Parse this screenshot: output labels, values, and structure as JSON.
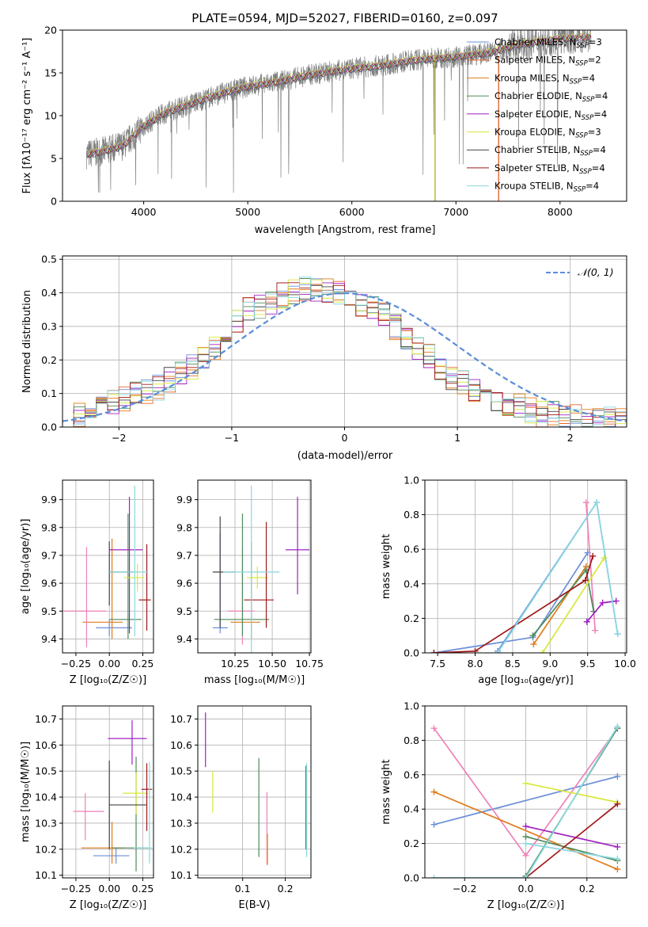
{
  "chart_data": [
    {
      "type": "line",
      "title": "PLATE=0594, MJD=52027, FIBERID=0160, z=0.097",
      "xlabel": "wavelength [Angstrom, rest frame]",
      "ylabel": "Flux [f$_\\lambda$10$^{-17}$ erg cm$^{-2}$ s$^{-1}$ A$^{-1}$]",
      "ylabel_display": "Flux [fλ10⁻¹⁷ erg cm⁻² s⁻¹ A⁻¹]",
      "xlim": [
        3220,
        8640
      ],
      "ylim": [
        0,
        20
      ],
      "xticks": [
        4000,
        5000,
        6000,
        7000,
        8000
      ],
      "yticks": [
        0,
        5,
        10,
        15,
        20
      ],
      "grid": false,
      "legend_position": "top-right",
      "spectrum_color": "#808080",
      "model_curve": {
        "x": [
          3450,
          3600,
          3800,
          4000,
          4200,
          4500,
          4800,
          5000,
          5300,
          5600,
          6000,
          6300,
          6600,
          7000,
          7300,
          7600,
          8000,
          8300
        ],
        "y": [
          5.5,
          5.8,
          6.5,
          8.8,
          10.3,
          11.6,
          12.8,
          13.4,
          14.0,
          14.8,
          15.5,
          15.9,
          16.5,
          16.9,
          17.3,
          18.3,
          19.0,
          19.2
        ]
      },
      "series": [
        {
          "name": "Chabrier MILES, N$_{SSP}$=3",
          "label": "Chabrier MILES, N",
          "sub": "SSP",
          "suffix": "=3",
          "color": "#6a8fd8"
        },
        {
          "name": "Salpeter MILES, N$_{SSP}$=2",
          "label": "Salpeter MILES, N",
          "sub": "SSP",
          "suffix": "=2",
          "color": "#e8652b"
        },
        {
          "name": "Kroupa MILES, N$_{SSP}$=4",
          "label": "Kroupa MILES, N",
          "sub": "SSP",
          "suffix": "=4",
          "color": "#e07b1a"
        },
        {
          "name": "Chabrier ELODIE, N$_{SSP}$=4",
          "label": "Chabrier ELODIE, N",
          "sub": "SSP",
          "suffix": "=4",
          "color": "#4e8a5a"
        },
        {
          "name": "Salpeter ELODIE, N$_{SSP}$=4",
          "label": "Salpeter ELODIE, N",
          "sub": "SSP",
          "suffix": "=4",
          "color": "#a020c0"
        },
        {
          "name": "Kroupa ELODIE, N$_{SSP}$=3",
          "label": "Kroupa ELODIE, N",
          "sub": "SSP",
          "suffix": "=3",
          "color": "#d8e838"
        },
        {
          "name": "Chabrier STELIB, N$_{SSP}$=4",
          "label": "Chabrier STELIB, N",
          "sub": "SSP",
          "suffix": "=4",
          "color": "#444444"
        },
        {
          "name": "Salpeter STELIB, N$_{SSP}$=4",
          "label": "Salpeter STELIB, N",
          "sub": "SSP",
          "suffix": "=4",
          "color": "#a01818"
        },
        {
          "name": "Kroupa STELIB, N$_{SSP}$=4",
          "label": "Kroupa STELIB, N",
          "sub": "SSP",
          "suffix": "=4",
          "color": "#8ad8e0"
        }
      ],
      "vertical_lines": [
        {
          "x": 6800,
          "color": "#b0a000"
        },
        {
          "x": 7410,
          "color": "#e05010"
        }
      ]
    },
    {
      "type": "line",
      "xlabel": "(data-model)/error",
      "ylabel": "Normed distribution",
      "xlim": [
        -2.5,
        2.5
      ],
      "ylim": [
        0,
        0.51
      ],
      "xticks": [
        -2,
        -1,
        0,
        1,
        2
      ],
      "yticks": [
        0.0,
        0.1,
        0.2,
        0.3,
        0.4,
        0.5
      ],
      "grid": true,
      "legend_position": "top-right",
      "legend": "$\\mathcal{N}(0,1)$",
      "legend_display": "𝒩(0, 1)",
      "gaussian_color": "#5b8dd8",
      "histogram_bin_width": 0.1,
      "histogram_values": [
        0.03,
        0.04,
        0.05,
        0.06,
        0.07,
        0.08,
        0.1,
        0.11,
        0.12,
        0.14,
        0.16,
        0.18,
        0.21,
        0.24,
        0.28,
        0.31,
        0.35,
        0.36,
        0.37,
        0.39,
        0.4,
        0.41,
        0.41,
        0.41,
        0.4,
        0.39,
        0.37,
        0.35,
        0.33,
        0.3,
        0.27,
        0.24,
        0.21,
        0.18,
        0.15,
        0.13,
        0.11,
        0.1,
        0.08,
        0.07,
        0.06,
        0.05,
        0.04,
        0.04,
        0.03,
        0.03,
        0.02,
        0.02,
        0.02,
        0.02
      ]
    },
    {
      "type": "scatter",
      "xlabel": "Z [log$_{10}$(Z/Z$_\\odot$)]",
      "xlabel_display": "Z [log₁₀(Z/Z☉)]",
      "ylabel": "age  [log$_{10}$(age/yr)]",
      "ylabel_display": "age  [log₁₀(age/yr)]",
      "xlim": [
        -0.35,
        0.33
      ],
      "ylim": [
        9.35,
        9.97
      ],
      "xticks": [
        -0.25,
        0.0,
        0.25
      ],
      "xtick_labels": [
        "−0.25",
        "0.00",
        "0.25"
      ],
      "yticks": [
        9.4,
        9.5,
        9.6,
        9.7,
        9.8,
        9.9
      ],
      "grid": true,
      "error_bars": [
        {
          "x": 0.0,
          "y": 9.44,
          "xerr": [
            0.1,
            0.17
          ],
          "yerr": [
            0.03,
            0.03
          ],
          "color": "#6a8fd8"
        },
        {
          "x": 0.02,
          "y": 9.46,
          "xerr": [
            0.22,
            0.08
          ],
          "yerr": [
            0.06,
            0.3
          ],
          "color": "#e07b1a"
        },
        {
          "x": -0.17,
          "y": 9.5,
          "xerr": [
            0.17,
            0.15
          ],
          "yerr": [
            0.13,
            0.23
          ],
          "color": "#ef82b8"
        },
        {
          "x": 0.14,
          "y": 9.47,
          "xerr": [
            0.14,
            0.1
          ],
          "yerr": [
            0.07,
            0.38
          ],
          "color": "#4e8a5a"
        },
        {
          "x": 0.15,
          "y": 9.72,
          "xerr": [
            0.15,
            0.1
          ],
          "yerr": [
            0.3,
            0.19
          ],
          "color": "#a020c0"
        },
        {
          "x": 0.21,
          "y": 9.62,
          "xerr": [
            0.1,
            0.05
          ],
          "yerr": [
            0.05,
            0.05
          ],
          "color": "#d8e838"
        },
        {
          "x": 0.0,
          "y": 9.64,
          "xerr": [
            0.0,
            0.18
          ],
          "yerr": [
            0.12,
            0.11
          ],
          "color": "#444444"
        },
        {
          "x": 0.28,
          "y": 9.54,
          "xerr": [
            0.06,
            0.03
          ],
          "yerr": [
            0.11,
            0.2
          ],
          "color": "#a01818"
        },
        {
          "x": 0.19,
          "y": 9.64,
          "xerr": [
            0.19,
            0.1
          ],
          "yerr": [
            0.23,
            0.31
          ],
          "color": "#8ad8e0"
        }
      ]
    },
    {
      "type": "scatter",
      "xlabel": "mass [log$_{10}$(M/M$_\\odot$)]",
      "xlabel_display": "mass [log₁₀(M/M☉)]",
      "xlim": [
        10.0,
        10.76
      ],
      "ylim": [
        9.35,
        9.97
      ],
      "xticks": [
        10.25,
        10.5,
        10.75
      ],
      "yticks": [
        9.4,
        9.5,
        9.6,
        9.7,
        9.8,
        9.9
      ],
      "grid": true,
      "error_bars": [
        {
          "x": 10.15,
          "y": 9.44,
          "xerr": [
            0.05,
            0.05
          ],
          "yerr": [
            0.02,
            0.34
          ],
          "color": "#6a8fd8"
        },
        {
          "x": 10.36,
          "y": 9.46,
          "xerr": [
            0.14,
            0.06
          ],
          "yerr": [
            0.06,
            0.29
          ],
          "color": "#e07b1a"
        },
        {
          "x": 10.3,
          "y": 9.5,
          "xerr": [
            0.1,
            0.08
          ],
          "yerr": [
            0.12,
            0.22
          ],
          "color": "#ef82b8"
        },
        {
          "x": 10.3,
          "y": 9.47,
          "xerr": [
            0.19,
            0.18
          ],
          "yerr": [
            0.06,
            0.38
          ],
          "color": "#4e8a5a"
        },
        {
          "x": 10.67,
          "y": 9.72,
          "xerr": [
            0.08,
            0.08
          ],
          "yerr": [
            0.16,
            0.19
          ],
          "color": "#a020c0"
        },
        {
          "x": 10.4,
          "y": 9.62,
          "xerr": [
            0.07,
            0.07
          ],
          "yerr": [
            0.04,
            0.04
          ],
          "color": "#d8e838"
        },
        {
          "x": 10.15,
          "y": 9.64,
          "xerr": [
            0.05,
            0.1
          ],
          "yerr": [
            0.2,
            0.2
          ],
          "color": "#444444"
        },
        {
          "x": 10.46,
          "y": 9.54,
          "xerr": [
            0.15,
            0.05
          ],
          "yerr": [
            0.1,
            0.28
          ],
          "color": "#a01818"
        },
        {
          "x": 10.36,
          "y": 9.64,
          "xerr": [
            0.19,
            0.19
          ],
          "yerr": [
            0.32,
            0.31
          ],
          "color": "#8ad8e0"
        }
      ]
    },
    {
      "type": "line",
      "xlabel": "age  [log$_{10}$(age/yr)]",
      "xlabel_display": "age  [log₁₀(age/yr)]",
      "ylabel": "mass weight",
      "xlim": [
        7.33,
        10.02
      ],
      "ylim": [
        0,
        1.0
      ],
      "xticks": [
        7.5,
        8.0,
        8.5,
        9.0,
        9.5,
        10.0
      ],
      "yticks": [
        0.0,
        0.2,
        0.4,
        0.6,
        0.8,
        1.0
      ],
      "grid": true,
      "marker": "+",
      "series": [
        {
          "x": [
            8.3,
            9.62,
            9.9
          ],
          "y": [
            0.01,
            0.87,
            0.11
          ],
          "color": "#6a8fd8"
        },
        {
          "x": [
            7.45,
            8.77,
            9.5
          ],
          "y": [
            0.0,
            0.09,
            0.58
          ],
          "color": "#6a8fd8"
        },
        {
          "x": [
            8.78,
            9.48
          ],
          "y": [
            0.05,
            0.5
          ],
          "color": "#e07b1a"
        },
        {
          "x": [
            9.48,
            9.6
          ],
          "y": [
            0.87,
            0.13
          ],
          "color": "#ef82b8"
        },
        {
          "x": [
            8.77,
            9.48,
            9.58
          ],
          "y": [
            0.1,
            0.48,
            0.24
          ],
          "color": "#4e8a5a"
        },
        {
          "x": [
            9.49,
            9.7,
            9.88
          ],
          "y": [
            0.18,
            0.29,
            0.3
          ],
          "color": "#a020c0"
        },
        {
          "x": [
            8.9,
            9.72
          ],
          "y": [
            0.0,
            0.55
          ],
          "color": "#d8e838"
        },
        {
          "x": [
            7.45,
            8.0,
            9.47,
            9.57
          ],
          "y": [
            0.0,
            0.01,
            0.42,
            0.56
          ],
          "color": "#a01818"
        },
        {
          "x": [
            8.3,
            9.62,
            9.9
          ],
          "y": [
            0.0,
            0.87,
            0.11
          ],
          "color": "#8ad8e0"
        }
      ]
    },
    {
      "type": "scatter",
      "xlabel": "Z [log$_{10}$(Z/Z$_\\odot$)]",
      "xlabel_display": "Z [log₁₀(Z/Z☉)]",
      "ylabel": "mass [log$_{10}$(M/M$_\\odot$)]",
      "ylabel_display": "mass [log₁₀(M/M☉)]",
      "xlim": [
        -0.35,
        0.33
      ],
      "ylim": [
        10.09,
        10.75
      ],
      "xticks": [
        -0.25,
        0.0,
        0.25
      ],
      "xtick_labels": [
        "−0.25",
        "0.00",
        "0.25"
      ],
      "yticks": [
        10.1,
        10.2,
        10.3,
        10.4,
        10.5,
        10.6,
        10.7
      ],
      "grid": true,
      "error_bars": [
        {
          "x": 0.05,
          "y": 10.175,
          "xerr": [
            0.17,
            0.1
          ],
          "yerr": [
            0.03,
            0.03
          ],
          "color": "#6a8fd8"
        },
        {
          "x": 0.02,
          "y": 10.205,
          "xerr": [
            0.23,
            0.08
          ],
          "yerr": [
            0.06,
            0.1
          ],
          "color": "#e07b1a"
        },
        {
          "x": -0.18,
          "y": 10.345,
          "xerr": [
            0.09,
            0.14
          ],
          "yerr": [
            0.11,
            0.07
          ],
          "color": "#ef82b8"
        },
        {
          "x": 0.2,
          "y": 10.205,
          "xerr": [
            0.18,
            0.09
          ],
          "yerr": [
            0.09,
            0.35
          ],
          "color": "#4e8a5a"
        },
        {
          "x": 0.17,
          "y": 10.625,
          "xerr": [
            0.18,
            0.11
          ],
          "yerr": [
            0.1,
            0.07
          ],
          "color": "#a020c0"
        },
        {
          "x": 0.2,
          "y": 10.415,
          "xerr": [
            0.1,
            0.09
          ],
          "yerr": [
            0.08,
            0.08
          ],
          "color": "#d8e838"
        },
        {
          "x": 0.0,
          "y": 10.37,
          "xerr": [
            0.0,
            0.28
          ],
          "yerr": [
            0.17,
            0.17
          ],
          "color": "#444444"
        },
        {
          "x": 0.28,
          "y": 10.43,
          "xerr": [
            0.04,
            0.04
          ],
          "yerr": [
            0.16,
            0.1
          ],
          "color": "#a01818"
        },
        {
          "x": 0.3,
          "y": 10.205,
          "xerr": [
            0.12,
            0.02
          ],
          "yerr": [
            0.06,
            0.33
          ],
          "color": "#8ad8e0"
        }
      ]
    },
    {
      "type": "scatter",
      "xlabel": "E(B-V)",
      "xlim": [
        -0.005,
        0.26
      ],
      "ylim": [
        10.09,
        10.75
      ],
      "xticks": [
        0.1,
        0.2
      ],
      "yticks": [
        10.1,
        10.2,
        10.3,
        10.4,
        10.5,
        10.6,
        10.7
      ],
      "grid": true,
      "error_bars": [
        {
          "x": 0.013,
          "y": 10.625,
          "yerr": [
            0.11,
            0.1
          ],
          "color": "#a020c0"
        },
        {
          "x": 0.03,
          "y": 10.41,
          "yerr": [
            0.07,
            0.09
          ],
          "color": "#d8e838"
        },
        {
          "x": 0.138,
          "y": 10.37,
          "yerr": [
            0.2,
            0.18
          ],
          "color": "#4e8a5a"
        },
        {
          "x": 0.157,
          "y": 10.28,
          "yerr": [
            0.14,
            0.14
          ],
          "color": "#ef82b8"
        },
        {
          "x": 0.158,
          "y": 10.2,
          "yerr": [
            0.06,
            0.06
          ],
          "color": "#e07b1a"
        },
        {
          "x": 0.248,
          "y": 10.36,
          "yerr": [
            0.16,
            0.16
          ],
          "color": "#4e8a5a"
        },
        {
          "x": 0.25,
          "y": 10.35,
          "yerr": [
            0.18,
            0.18
          ],
          "color": "#8ad8e0"
        }
      ]
    },
    {
      "type": "line",
      "xlabel": "Z [log$_{10}$(Z/Z$_\\odot$)]",
      "xlabel_display": "Z [log₁₀(Z/Z☉)]",
      "ylabel": "mass weight",
      "xlim": [
        -0.33,
        0.33
      ],
      "ylim": [
        0,
        1.0
      ],
      "xticks": [
        -0.2,
        0.0,
        0.2
      ],
      "xtick_labels": [
        "−0.2",
        "0.0",
        "0.2"
      ],
      "yticks": [
        0.0,
        0.2,
        0.4,
        0.6,
        0.8,
        1.0
      ],
      "grid": true,
      "marker": "+",
      "series": [
        {
          "x": [
            -0.3,
            0.3
          ],
          "y": [
            0.31,
            0.59
          ],
          "color": "#6a8fd8"
        },
        {
          "x": [
            -0.3,
            0.0,
            0.3
          ],
          "y": [
            0.87,
            0.13,
            0.87
          ],
          "color": "#ef82b8"
        },
        {
          "x": [
            -0.3,
            0.3
          ],
          "y": [
            0.5,
            0.05
          ],
          "color": "#e07b1a"
        },
        {
          "x": [
            0.0,
            0.3
          ],
          "y": [
            0.24,
            0.1
          ],
          "color": "#4e8a5a"
        },
        {
          "x": [
            0.0,
            0.3
          ],
          "y": [
            0.3,
            0.18
          ],
          "color": "#a020c0"
        },
        {
          "x": [
            0.0,
            0.3
          ],
          "y": [
            0.55,
            0.44
          ],
          "color": "#d8e838"
        },
        {
          "x": [
            0.0,
            0.3
          ],
          "y": [
            0.0,
            0.43
          ],
          "color": "#a01818"
        },
        {
          "x": [
            0.0,
            0.3
          ],
          "y": [
            0.01,
            0.87
          ],
          "color": "#4e8a5a"
        },
        {
          "x": [
            -0.3,
            0.0,
            0.3
          ],
          "y": [
            0.0,
            0.0,
            0.88
          ],
          "color": "#8ad8e0"
        },
        {
          "x": [
            0.0,
            0.3
          ],
          "y": [
            0.2,
            0.11
          ],
          "color": "#8ad8e0"
        }
      ]
    }
  ]
}
